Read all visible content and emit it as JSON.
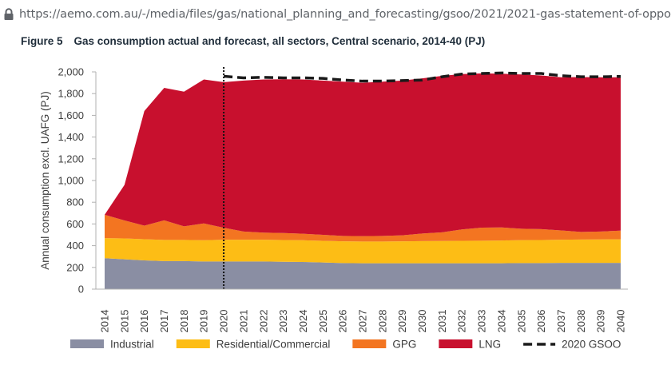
{
  "url_bar": {
    "url": "https://aemo.com.au/-/media/files/gas/national_planning_and_forecasting/gsoo/2021/2021-gas-statement-of-oppo",
    "lock_icon": "lock-icon"
  },
  "figure": {
    "number": "Figure 5",
    "title": "Gas consumption actual and forecast, all sectors, Central scenario, 2014-40 (PJ)"
  },
  "chart_data": {
    "type": "area",
    "stacked": true,
    "title": "Gas consumption actual and forecast, all sectors, Central scenario, 2014-40 (PJ)",
    "xlabel": "",
    "ylabel": "Annual consumption excl. UAFG (PJ)",
    "ylim": [
      0,
      2000
    ],
    "y_ticks": [
      0,
      200,
      400,
      600,
      800,
      1000,
      1200,
      1400,
      1600,
      1800,
      2000
    ],
    "y_tick_labels": [
      "0",
      "200",
      "400",
      "600",
      "800",
      "1,000",
      "1,200",
      "1,400",
      "1,600",
      "1,800",
      "2,000"
    ],
    "categories": [
      "2014",
      "2015",
      "2016",
      "2017",
      "2018",
      "2019",
      "2020",
      "2021",
      "2022",
      "2023",
      "2024",
      "2025",
      "2026",
      "2027",
      "2028",
      "2029",
      "2030",
      "2031",
      "2032",
      "2033",
      "2034",
      "2035",
      "2036",
      "2037",
      "2038",
      "2039",
      "2040"
    ],
    "grid": false,
    "legend_position": "bottom",
    "divider_at": "2020",
    "series": [
      {
        "name": "Industrial",
        "color": "#8a8ea3",
        "values": [
          285,
          275,
          265,
          258,
          258,
          255,
          255,
          255,
          255,
          252,
          250,
          245,
          240,
          238,
          238,
          238,
          238,
          238,
          238,
          238,
          238,
          240,
          240,
          242,
          242,
          242,
          242
        ]
      },
      {
        "name": "Residential/Commercial",
        "color": "#fdbd15",
        "values": [
          185,
          192,
          195,
          195,
          195,
          195,
          200,
          200,
          200,
          200,
          200,
          200,
          200,
          200,
          200,
          202,
          204,
          205,
          207,
          208,
          210,
          211,
          212,
          213,
          215,
          216,
          217
        ]
      },
      {
        "name": "GPG",
        "color": "#f37521",
        "values": [
          215,
          165,
          125,
          180,
          125,
          155,
          110,
          75,
          65,
          65,
          60,
          55,
          50,
          50,
          52,
          55,
          70,
          80,
          105,
          120,
          120,
          105,
          100,
          85,
          70,
          72,
          80
        ]
      },
      {
        "name": "LNG",
        "color": "#c8102e",
        "values": [
          0,
          328,
          1055,
          1220,
          1240,
          1325,
          1340,
          1390,
          1410,
          1415,
          1420,
          1420,
          1420,
          1412,
          1420,
          1425,
          1428,
          1440,
          1430,
          1420,
          1415,
          1420,
          1415,
          1410,
          1425,
          1420,
          1411
        ]
      }
    ],
    "lines": [
      {
        "name": "2020 GSOO",
        "style": "dashed",
        "color": "#1a1a1a",
        "x": [
          "2020",
          "2021",
          "2022",
          "2023",
          "2024",
          "2025",
          "2026",
          "2027",
          "2028",
          "2029",
          "2030",
          "2031",
          "2032",
          "2033",
          "2034",
          "2035",
          "2036",
          "2037",
          "2038",
          "2039",
          "2040"
        ],
        "values": [
          1960,
          1945,
          1950,
          1945,
          1945,
          1940,
          1925,
          1915,
          1915,
          1920,
          1925,
          1955,
          1980,
          1985,
          1990,
          1985,
          1985,
          1965,
          1955,
          1955,
          1958
        ]
      }
    ]
  }
}
